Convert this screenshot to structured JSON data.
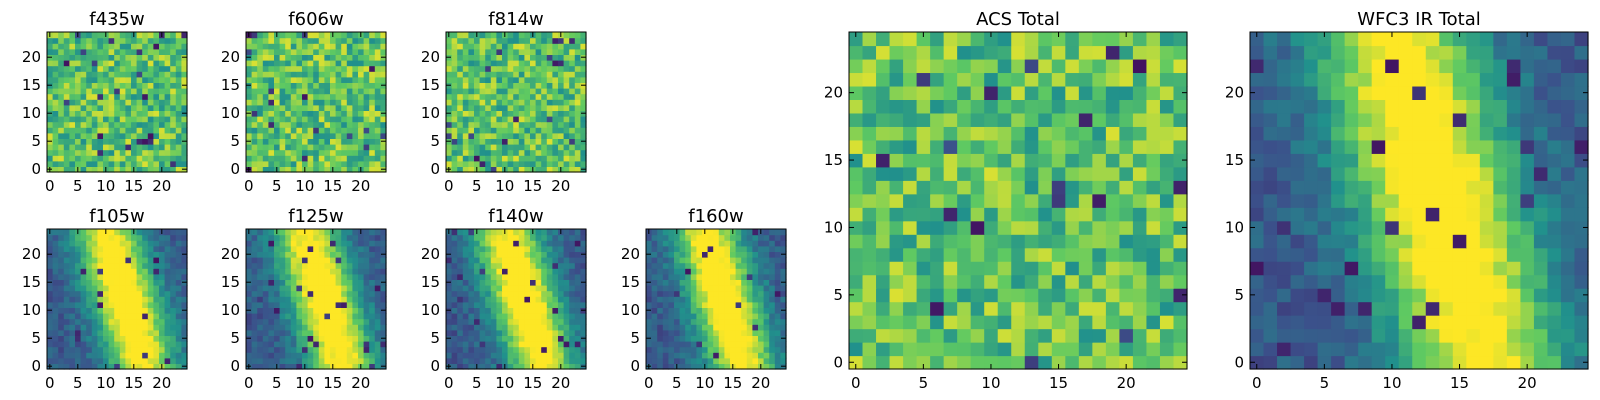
{
  "figure": {
    "background": "#ffffff",
    "colormap": "viridis",
    "colormap_stops": [
      "#440154",
      "#3b528b",
      "#21918c",
      "#5ec962",
      "#fde725"
    ]
  },
  "chart_data": [
    {
      "type": "heatmap",
      "title": "f435w",
      "grid_size": [
        25,
        25
      ],
      "pattern": "noise",
      "value_range": [
        0,
        1
      ],
      "x_ticks": [
        "0",
        "5",
        "10",
        "15",
        "20"
      ],
      "y_ticks": [
        "0",
        "5",
        "10",
        "15",
        "20"
      ],
      "xlim": [
        0,
        25
      ],
      "ylim": [
        0,
        25
      ]
    },
    {
      "type": "heatmap",
      "title": "f606w",
      "grid_size": [
        25,
        25
      ],
      "pattern": "noise",
      "value_range": [
        0,
        1
      ],
      "x_ticks": [
        "0",
        "5",
        "10",
        "15",
        "20"
      ],
      "y_ticks": [
        "0",
        "5",
        "10",
        "15",
        "20"
      ],
      "xlim": [
        0,
        25
      ],
      "ylim": [
        0,
        25
      ]
    },
    {
      "type": "heatmap",
      "title": "f814w",
      "grid_size": [
        25,
        25
      ],
      "pattern": "noise",
      "value_range": [
        0,
        1
      ],
      "x_ticks": [
        "0",
        "5",
        "10",
        "15",
        "20"
      ],
      "y_ticks": [
        "0",
        "5",
        "10",
        "15",
        "20"
      ],
      "xlim": [
        0,
        25
      ],
      "ylim": [
        0,
        25
      ]
    },
    {
      "type": "heatmap",
      "title": "f105w",
      "grid_size": [
        25,
        25
      ],
      "pattern": "elongated-source",
      "value_range": [
        0,
        1
      ],
      "x_ticks": [
        "0",
        "5",
        "10",
        "15",
        "20"
      ],
      "y_ticks": [
        "0",
        "5",
        "10",
        "15",
        "20"
      ],
      "xlim": [
        0,
        25
      ],
      "ylim": [
        0,
        25
      ]
    },
    {
      "type": "heatmap",
      "title": "f125w",
      "grid_size": [
        25,
        25
      ],
      "pattern": "elongated-source",
      "value_range": [
        0,
        1
      ],
      "x_ticks": [
        "0",
        "5",
        "10",
        "15",
        "20"
      ],
      "y_ticks": [
        "0",
        "5",
        "10",
        "15",
        "20"
      ],
      "xlim": [
        0,
        25
      ],
      "ylim": [
        0,
        25
      ]
    },
    {
      "type": "heatmap",
      "title": "f140w",
      "grid_size": [
        25,
        25
      ],
      "pattern": "elongated-source",
      "value_range": [
        0,
        1
      ],
      "x_ticks": [
        "0",
        "5",
        "10",
        "15",
        "20"
      ],
      "y_ticks": [
        "0",
        "5",
        "10",
        "15",
        "20"
      ],
      "xlim": [
        0,
        25
      ],
      "ylim": [
        0,
        25
      ]
    },
    {
      "type": "heatmap",
      "title": "f160w",
      "grid_size": [
        25,
        25
      ],
      "pattern": "elongated-source",
      "value_range": [
        0,
        1
      ],
      "x_ticks": [
        "0",
        "5",
        "10",
        "15",
        "20"
      ],
      "y_ticks": [
        "0",
        "5",
        "10",
        "15",
        "20"
      ],
      "xlim": [
        0,
        25
      ],
      "ylim": [
        0,
        25
      ]
    },
    {
      "type": "heatmap",
      "title": "ACS Total",
      "grid_size": [
        25,
        25
      ],
      "pattern": "noise",
      "value_range": [
        0,
        1
      ],
      "x_ticks": [
        "0",
        "5",
        "10",
        "15",
        "20"
      ],
      "y_ticks": [
        "0",
        "5",
        "10",
        "15",
        "20"
      ],
      "xlim": [
        0,
        25
      ],
      "ylim": [
        0,
        25
      ]
    },
    {
      "type": "heatmap",
      "title": "WFC3 IR Total",
      "grid_size": [
        25,
        25
      ],
      "pattern": "elongated-source",
      "value_range": [
        0,
        1
      ],
      "x_ticks": [
        "0",
        "5",
        "10",
        "15",
        "20"
      ],
      "y_ticks": [
        "0",
        "5",
        "10",
        "15",
        "20"
      ],
      "xlim": [
        0,
        25
      ],
      "ylim": [
        0,
        25
      ]
    }
  ]
}
